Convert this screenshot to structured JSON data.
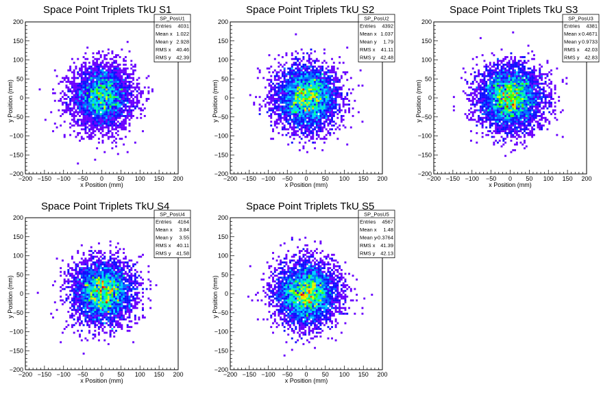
{
  "chart_data": [
    {
      "type": "heatmap",
      "id": "S1",
      "title": "Space Point Triplets TkU S1",
      "xlabel": "x Position (mm)",
      "ylabel": "y Position (mm)",
      "xlim": [
        -200,
        200
      ],
      "ylim": [
        -200,
        200
      ],
      "xticks": [
        "−200",
        "−150",
        "−100",
        "−50",
        "0",
        "50",
        "100",
        "150",
        "200"
      ],
      "yticks": [
        "−200",
        "−150",
        "−100",
        "−50",
        "0",
        "50",
        "100",
        "150",
        "200"
      ],
      "stats": {
        "name": "SP_PosU1",
        "rows": [
          [
            "Entries",
            "4031"
          ],
          [
            "Mean x",
            "1.022"
          ],
          [
            "Mean y",
            "2.928"
          ],
          [
            "RMS x",
            "40.46"
          ],
          [
            "RMS y",
            "42.39"
          ]
        ]
      },
      "cluster": {
        "center_x": 1.022,
        "center_y": 2.928,
        "rms_x": 40.46,
        "rms_y": 42.39,
        "entries": 4031
      }
    },
    {
      "type": "heatmap",
      "id": "S2",
      "title": "Space Point Triplets TkU S2",
      "xlabel": "x Position (mm)",
      "ylabel": "y Position (mm)",
      "xlim": [
        -200,
        200
      ],
      "ylim": [
        -200,
        200
      ],
      "xticks": [
        "−200",
        "−150",
        "−100",
        "−50",
        "0",
        "50",
        "100",
        "150",
        "200"
      ],
      "yticks": [
        "−200",
        "−150",
        "−100",
        "−50",
        "0",
        "50",
        "100",
        "150",
        "200"
      ],
      "stats": {
        "name": "SP_PosU2",
        "rows": [
          [
            "Entries",
            "4392"
          ],
          [
            "Mean x",
            "1.037"
          ],
          [
            "Mean y",
            "1.79"
          ],
          [
            "RMS x",
            "41.11"
          ],
          [
            "RMS y",
            "42.48"
          ]
        ]
      },
      "cluster": {
        "center_x": 1.037,
        "center_y": 1.79,
        "rms_x": 41.11,
        "rms_y": 42.48,
        "entries": 4392
      }
    },
    {
      "type": "heatmap",
      "id": "S3",
      "title": "Space Point Triplets TkU S3",
      "xlabel": "x Position (mm)",
      "ylabel": "y Position (mm)",
      "xlim": [
        -200,
        200
      ],
      "ylim": [
        -200,
        200
      ],
      "xticks": [
        "−200",
        "−150",
        "−100",
        "−50",
        "0",
        "50",
        "100",
        "150",
        "200"
      ],
      "yticks": [
        "−200",
        "−150",
        "−100",
        "−50",
        "0",
        "50",
        "100",
        "150",
        "200"
      ],
      "stats": {
        "name": "SP_PosU3",
        "rows": [
          [
            "Entries",
            "4381"
          ],
          [
            "Mean x",
            "0.4671"
          ],
          [
            "Mean y",
            "0.9733"
          ],
          [
            "RMS x",
            "42.03"
          ],
          [
            "RMS y",
            "42.83"
          ]
        ]
      },
      "cluster": {
        "center_x": 0.4671,
        "center_y": 0.9733,
        "rms_x": 42.03,
        "rms_y": 42.83,
        "entries": 4381
      }
    },
    {
      "type": "heatmap",
      "id": "S4",
      "title": "Space Point Triplets TkU S4",
      "xlabel": "x Position (mm)",
      "ylabel": "y Position (mm)",
      "xlim": [
        -200,
        200
      ],
      "ylim": [
        -200,
        200
      ],
      "xticks": [
        "−200",
        "−150",
        "−100",
        "−50",
        "0",
        "50",
        "100",
        "150",
        "200"
      ],
      "yticks": [
        "−200",
        "−150",
        "−100",
        "−50",
        "0",
        "50",
        "100",
        "150",
        "200"
      ],
      "stats": {
        "name": "SP_PosU4",
        "rows": [
          [
            "Entries",
            "4164"
          ],
          [
            "Mean x",
            "3.84"
          ],
          [
            "Mean y",
            "3.55"
          ],
          [
            "RMS x",
            "40.11"
          ],
          [
            "RMS y",
            "41.58"
          ]
        ]
      },
      "cluster": {
        "center_x": 3.84,
        "center_y": 3.55,
        "rms_x": 40.11,
        "rms_y": 41.58,
        "entries": 4164
      }
    },
    {
      "type": "heatmap",
      "id": "S5",
      "title": "Space Point Triplets TkU S5",
      "xlabel": "x Position (mm)",
      "ylabel": "y Position (mm)",
      "xlim": [
        -200,
        200
      ],
      "ylim": [
        -200,
        200
      ],
      "xticks": [
        "−200",
        "−150",
        "−100",
        "−50",
        "0",
        "50",
        "100",
        "150",
        "200"
      ],
      "yticks": [
        "−200",
        "−150",
        "−100",
        "−50",
        "0",
        "50",
        "100",
        "150",
        "200"
      ],
      "stats": {
        "name": "SP_PosU5",
        "rows": [
          [
            "Entries",
            "4567"
          ],
          [
            "Mean x",
            "1.48"
          ],
          [
            "Mean y",
            "-0.3764"
          ],
          [
            "RMS x",
            "41.39"
          ],
          [
            "RMS y",
            "42.13"
          ]
        ]
      },
      "cluster": {
        "center_x": 1.48,
        "center_y": -0.3764,
        "rms_x": 41.39,
        "rms_y": 42.13,
        "entries": 4567
      }
    }
  ],
  "colors": {
    "palette": [
      "#6a00ff",
      "#1010ff",
      "#0070ff",
      "#00d2ff",
      "#00ffa0",
      "#3cff00",
      "#d2ff00",
      "#ffc800",
      "#ff5000",
      "#e00000"
    ],
    "frame": "#000000",
    "background": "#ffffff"
  }
}
